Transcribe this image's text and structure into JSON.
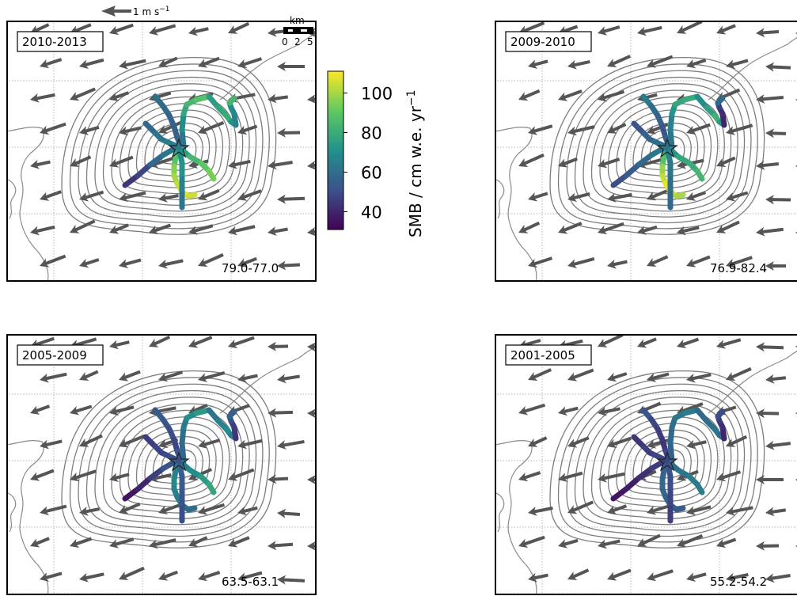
{
  "chart_data": {
    "type": "map-panels",
    "colorbar": {
      "label": "SMB / cm w.e. yr",
      "label_superscript": "−1",
      "ticks": [
        40,
        60,
        80,
        100
      ],
      "vmin": 31,
      "vmax": 111,
      "colormap": [
        "#440154",
        "#3b528b",
        "#21918c",
        "#5ec962",
        "#fde725"
      ]
    },
    "wind_reference": {
      "label": "1 m s",
      "superscript": "−1"
    },
    "scale_bar": {
      "unit": "km",
      "ticks": [
        "0",
        "2",
        "5"
      ]
    },
    "panels": [
      {
        "period": "2010-2013",
        "range": "79.0-77.0",
        "transects": [
          {
            "smb": [
              60,
              58,
              56,
              55,
              57,
              62,
              70
            ]
          },
          {
            "smb": [
              62,
              70,
              78,
              84,
              88,
              90
            ]
          },
          {
            "smb": [
              75,
              78,
              80,
              72,
              68
            ]
          },
          {
            "smb": [
              66,
              68,
              70,
              84,
              90
            ]
          },
          {
            "smb": [
              76,
              84,
              90,
              94,
              96
            ]
          },
          {
            "smb": [
              80,
              88,
              96,
              100,
              104,
              108,
              105,
              92
            ]
          },
          {
            "smb": [
              70,
              72,
              66,
              62,
              58
            ]
          },
          {
            "smb": [
              64,
              62,
              58,
              55
            ]
          },
          {
            "smb": [
              44,
              48,
              58,
              62,
              66
            ]
          }
        ]
      },
      {
        "period": "2009-2010",
        "range": "76.9-82.4",
        "transects": [
          {
            "smb": [
              64,
              60,
              56,
              52,
              56,
              60,
              66
            ]
          },
          {
            "smb": [
              62,
              66,
              72,
              78,
              80,
              82
            ]
          },
          {
            "smb": [
              70,
              76,
              82,
              74,
              70
            ]
          },
          {
            "smb": [
              40,
              42,
              46,
              58,
              64
            ]
          },
          {
            "smb": [
              72,
              78,
              80,
              84,
              86
            ]
          },
          {
            "smb": [
              80,
              88,
              98,
              104,
              108,
              106,
              100,
              90
            ]
          },
          {
            "smb": [
              66,
              62,
              60,
              58,
              56
            ]
          },
          {
            "smb": [
              60,
              56,
              52,
              50
            ]
          },
          {
            "smb": [
              50,
              54,
              58,
              62,
              66
            ]
          }
        ]
      },
      {
        "period": "2005-2009",
        "range": "63.5-63.1",
        "transects": [
          {
            "smb": [
              54,
              52,
              50,
              48,
              52,
              58,
              60
            ]
          },
          {
            "smb": [
              58,
              60,
              64,
              70,
              74,
              76
            ]
          },
          {
            "smb": [
              62,
              66,
              70,
              64,
              60
            ]
          },
          {
            "smb": [
              44,
              46,
              50,
              56,
              62
            ]
          },
          {
            "smb": [
              66,
              70,
              74,
              78,
              80
            ]
          },
          {
            "smb": [
              62,
              66,
              68,
              66,
              64,
              62,
              60,
              58
            ]
          },
          {
            "smb": [
              56,
              54,
              52,
              50,
              50
            ]
          },
          {
            "smb": [
              50,
              48,
              46,
              44
            ]
          },
          {
            "smb": [
              36,
              40,
              46,
              52,
              56
            ]
          }
        ]
      },
      {
        "period": "2001-2005",
        "range": "55.2-54.2",
        "transects": [
          {
            "smb": [
              52,
              48,
              46,
              44,
              48,
              50,
              52
            ]
          },
          {
            "smb": [
              56,
              58,
              60,
              62,
              64,
              66
            ]
          },
          {
            "smb": [
              58,
              60,
              62,
              58,
              56
            ]
          },
          {
            "smb": [
              40,
              42,
              46,
              50,
              56
            ]
          },
          {
            "smb": [
              60,
              62,
              64,
              64,
              66
            ]
          },
          {
            "smb": [
              54,
              56,
              58,
              58,
              56,
              56,
              54,
              54
            ]
          },
          {
            "smb": [
              52,
              50,
              48,
              46,
              46
            ]
          },
          {
            "smb": [
              48,
              46,
              44,
              42
            ]
          },
          {
            "smb": [
              36,
              38,
              42,
              46,
              50
            ]
          }
        ]
      }
    ]
  }
}
